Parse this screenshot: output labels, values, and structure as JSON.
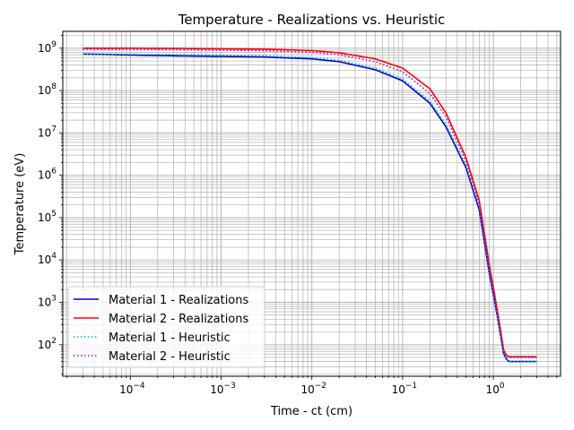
{
  "chart_data": {
    "type": "line",
    "title": "Temperature - Realizations vs. Heuristic",
    "xlabel": "Time - ct (cm)",
    "ylabel": "Temperature (eV)",
    "xscale": "log",
    "yscale": "log",
    "xlim": [
      1.8e-05,
      5.5
    ],
    "ylim": [
      18,
      2500000000
    ],
    "x_ticks": [
      {
        "value": 0.0001,
        "base": "10",
        "exp": "−4"
      },
      {
        "value": 0.001,
        "base": "10",
        "exp": "−3"
      },
      {
        "value": 0.01,
        "base": "10",
        "exp": "−2"
      },
      {
        "value": 0.1,
        "base": "10",
        "exp": "−1"
      },
      {
        "value": 1,
        "base": "10",
        "exp": "0"
      }
    ],
    "y_ticks": [
      {
        "value": 100,
        "base": "10",
        "exp": "2"
      },
      {
        "value": 1000,
        "base": "10",
        "exp": "3"
      },
      {
        "value": 10000,
        "base": "10",
        "exp": "4"
      },
      {
        "value": 100000,
        "base": "10",
        "exp": "5"
      },
      {
        "value": 1000000,
        "base": "10",
        "exp": "6"
      },
      {
        "value": 10000000,
        "base": "10",
        "exp": "7"
      },
      {
        "value": 100000000,
        "base": "10",
        "exp": "8"
      },
      {
        "value": 1000000000,
        "base": "10",
        "exp": "9"
      }
    ],
    "grid": "major and minor",
    "legend_position": "lower-left",
    "series": [
      {
        "name": "Material 1 - Realizations",
        "color": "#0000cc",
        "style": "solid",
        "x": [
          3e-05,
          0.0001,
          0.0003,
          0.001,
          0.003,
          0.01,
          0.02,
          0.05,
          0.1,
          0.2,
          0.3,
          0.5,
          0.7,
          0.9,
          1.1,
          1.3,
          1.4,
          1.5,
          3
        ],
        "y": [
          730000000,
          690000000,
          660000000,
          640000000,
          620000000,
          560000000,
          480000000,
          310000000,
          170000000,
          50000000,
          14000000,
          1500000,
          150000,
          5000,
          500,
          60,
          45,
          40,
          40
        ]
      },
      {
        "name": "Material 2 - Realizations",
        "color": "#ff0000",
        "style": "solid",
        "x": [
          3e-05,
          0.0001,
          0.0003,
          0.001,
          0.003,
          0.01,
          0.02,
          0.05,
          0.1,
          0.2,
          0.3,
          0.5,
          0.7,
          0.9,
          1.1,
          1.3,
          1.4,
          1.5,
          3
        ],
        "y": [
          1000000000,
          1000000000,
          990000000,
          970000000,
          950000000,
          880000000,
          780000000,
          560000000,
          340000000,
          110000000,
          30000000,
          2600000,
          250000,
          8000,
          700,
          75,
          55,
          52,
          52
        ]
      },
      {
        "name": "Material 1 - Heuristic",
        "color": "#00bfbf",
        "style": "dotted",
        "x": [
          3e-05,
          0.0001,
          0.0003,
          0.001,
          0.003,
          0.01,
          0.02,
          0.05,
          0.1,
          0.2,
          0.3,
          0.5,
          0.7,
          0.9,
          1.1,
          1.3,
          1.4,
          1.5,
          3
        ],
        "y": [
          720000000,
          720000000,
          710000000,
          690000000,
          660000000,
          600000000,
          520000000,
          340000000,
          190000000,
          56000000,
          16000000,
          1700000,
          170000,
          5500,
          520,
          60,
          44,
          40,
          40
        ]
      },
      {
        "name": "Material 2 - Heuristic",
        "color": "#bf00bf",
        "style": "dotted",
        "x": [
          3e-05,
          0.0001,
          0.0003,
          0.001,
          0.003,
          0.01,
          0.02,
          0.05,
          0.1,
          0.2,
          0.3,
          0.5,
          0.7,
          0.9,
          1.1,
          1.3,
          1.4,
          1.5,
          3
        ],
        "y": [
          950000000,
          950000000,
          930000000,
          900000000,
          870000000,
          800000000,
          700000000,
          480000000,
          280000000,
          85000000,
          24000000,
          2100000,
          200000,
          6500,
          600,
          70,
          52,
          50,
          50
        ]
      }
    ]
  }
}
